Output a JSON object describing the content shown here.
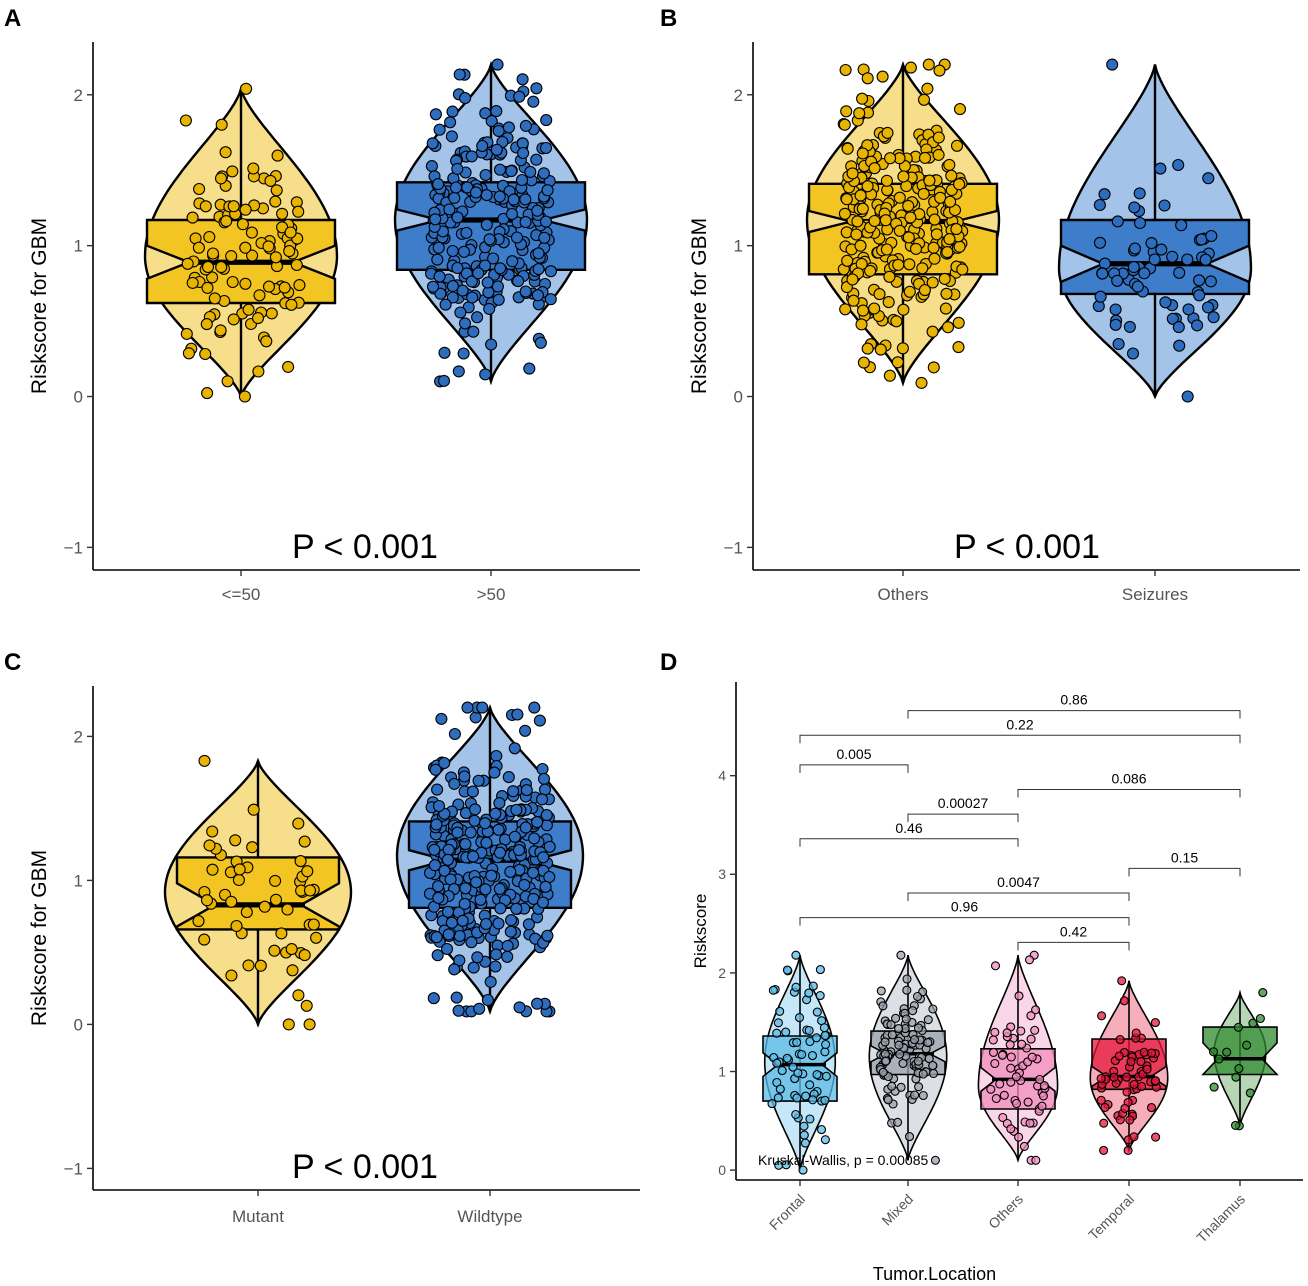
{
  "colors": {
    "yellow_fill": "#F2C523",
    "yellow_violin": "#F6DE8A",
    "yellow_point": "#E8B400",
    "blue_fill": "#3D7DCA",
    "blue_violin": "#A3C3E8",
    "blue_point": "#2E6DBE",
    "frontal": "#5BBBE7",
    "mixed": "#9AA2AE",
    "others": "#F28CBE",
    "temporal": "#E4163A",
    "thalamus": "#2F8A2F"
  },
  "chart_data": [
    {
      "panel": "A",
      "type": "violin-box",
      "ylabel": "Riskscore for GBM",
      "xlabel": "",
      "ylim": [
        -1.15,
        2.35
      ],
      "yticks": [
        -1,
        0,
        1,
        2
      ],
      "annotation": "P < 0.001",
      "groups": [
        {
          "name": "<=50",
          "color": "yellow",
          "n": 110,
          "min": 0.0,
          "q1": 0.62,
          "median": 0.89,
          "q3": 1.17,
          "max": 2.04,
          "violin_peak": 0.93,
          "violin_width": 1.0,
          "notch": 0.11
        },
        {
          "name": ">50",
          "color": "blue",
          "n": 270,
          "min": 0.1,
          "q1": 0.84,
          "median": 1.17,
          "q3": 1.42,
          "max": 2.2,
          "violin_peak": 1.17,
          "violin_width": 1.0,
          "notch": 0.07
        }
      ]
    },
    {
      "panel": "B",
      "type": "violin-box",
      "ylabel": "Riskscore for GBM",
      "xlabel": "",
      "ylim": [
        -1.15,
        2.35
      ],
      "yticks": [
        -1,
        0,
        1,
        2
      ],
      "annotation": "P < 0.001",
      "groups": [
        {
          "name": "Others",
          "color": "yellow",
          "n": 300,
          "min": 0.09,
          "q1": 0.81,
          "median": 1.16,
          "q3": 1.41,
          "max": 2.2,
          "violin_peak": 1.17,
          "violin_width": 1.0,
          "notch": 0.07
        },
        {
          "name": "Seizures",
          "color": "blue",
          "n": 70,
          "min": 0.0,
          "q1": 0.68,
          "median": 0.88,
          "q3": 1.17,
          "max": 2.2,
          "violin_peak": 0.85,
          "violin_width": 1.0,
          "notch": 0.12
        }
      ]
    },
    {
      "panel": "C",
      "type": "violin-box",
      "ylabel": "Riskscore for GBM",
      "xlabel": "",
      "ylim": [
        -1.15,
        2.35
      ],
      "yticks": [
        -1,
        0,
        1,
        2
      ],
      "annotation": "P < 0.001",
      "groups": [
        {
          "name": "Mutant",
          "color": "yellow",
          "n": 55,
          "min": 0.0,
          "q1": 0.66,
          "median": 0.83,
          "q3": 1.16,
          "max": 1.83,
          "violin_peak": 0.92,
          "violin_width": 1.0,
          "notch": 0.15
        },
        {
          "name": "Wildtype",
          "color": "blue",
          "n": 330,
          "min": 0.09,
          "q1": 0.81,
          "median": 1.14,
          "q3": 1.41,
          "max": 2.2,
          "violin_peak": 1.17,
          "violin_width": 1.0,
          "notch": 0.07
        }
      ]
    },
    {
      "panel": "D",
      "type": "violin-box",
      "ylabel": "Riskscore",
      "xlabel": "Tumor.Location",
      "ylim": [
        -0.1,
        4.95
      ],
      "yticks": [
        0,
        1,
        2,
        3,
        4
      ],
      "annotation": "Kruskal-Wallis, p = 0.00085",
      "groups": [
        {
          "name": "Frontal",
          "color": "frontal",
          "n": 70,
          "min": 0.0,
          "q1": 0.7,
          "median": 1.07,
          "q3": 1.36,
          "max": 2.18,
          "violin_peak": 1.1,
          "violin_width": 0.82,
          "notch": 0.12
        },
        {
          "name": "Mixed",
          "color": "mixed",
          "n": 110,
          "min": 0.1,
          "q1": 0.97,
          "median": 1.18,
          "q3": 1.41,
          "max": 2.18,
          "violin_peak": 1.15,
          "violin_width": 0.9,
          "notch": 0.08
        },
        {
          "name": "Others",
          "color": "others",
          "n": 60,
          "min": 0.1,
          "q1": 0.62,
          "median": 0.92,
          "q3": 1.23,
          "max": 2.18,
          "violin_peak": 0.85,
          "violin_width": 0.92,
          "notch": 0.12
        },
        {
          "name": "Temporal",
          "color": "temporal",
          "n": 65,
          "min": 0.2,
          "q1": 0.82,
          "median": 0.95,
          "q3": 1.33,
          "max": 1.92,
          "violin_peak": 0.93,
          "violin_width": 0.9,
          "notch": 0.1
        },
        {
          "name": "Thalamus",
          "color": "thalamus",
          "n": 14,
          "min": 0.45,
          "q1": 0.97,
          "median": 1.13,
          "q3": 1.45,
          "max": 1.8,
          "violin_peak": 1.2,
          "violin_width": 0.6,
          "notch": 0.16
        }
      ],
      "comparisons": [
        {
          "from": "Others",
          "to": "Temporal",
          "y": 2.31,
          "label": "0.42"
        },
        {
          "from": "Frontal",
          "to": "Temporal",
          "y": 2.56,
          "label": "0.96"
        },
        {
          "from": "Mixed",
          "to": "Temporal",
          "y": 2.81,
          "label": "0.0047"
        },
        {
          "from": "Temporal",
          "to": "Thalamus",
          "y": 3.06,
          "label": "0.15"
        },
        {
          "from": "Frontal",
          "to": "Others",
          "y": 3.36,
          "label": "0.46"
        },
        {
          "from": "Mixed",
          "to": "Others",
          "y": 3.61,
          "label": "0.00027"
        },
        {
          "from": "Others",
          "to": "Thalamus",
          "y": 3.86,
          "label": "0.086"
        },
        {
          "from": "Frontal",
          "to": "Mixed",
          "y": 4.11,
          "label": "0.005"
        },
        {
          "from": "Frontal",
          "to": "Thalamus",
          "y": 4.41,
          "label": "0.22"
        },
        {
          "from": "Mixed",
          "to": "Thalamus",
          "y": 4.66,
          "label": "0.86"
        }
      ]
    }
  ]
}
